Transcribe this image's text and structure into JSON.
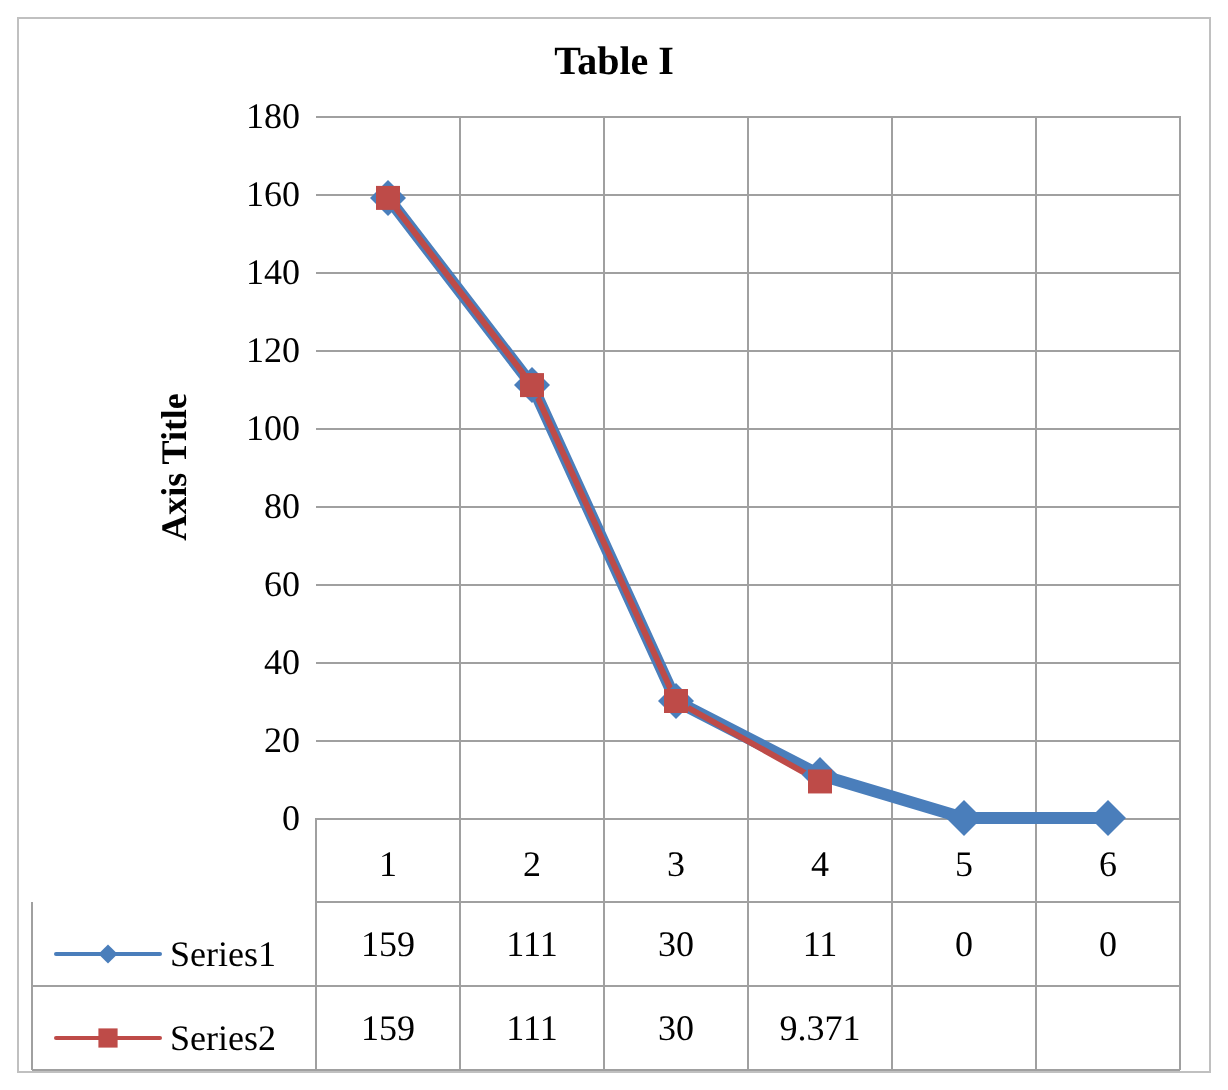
{
  "chart_data": {
    "type": "line",
    "title": "Table I",
    "ylabel": "Axis Title",
    "categories": [
      "1",
      "2",
      "3",
      "4",
      "5",
      "6"
    ],
    "series": [
      {
        "name": "Series1",
        "color": "#4a7ebb",
        "marker": "diamond",
        "values": [
          159,
          111,
          30,
          11,
          0,
          0
        ]
      },
      {
        "name": "Series2",
        "color": "#be4b48",
        "marker": "square",
        "values": [
          159,
          111,
          30,
          9.371,
          null,
          null
        ]
      }
    ],
    "ylim": [
      0,
      180
    ],
    "yticks": [
      0,
      20,
      40,
      60,
      80,
      100,
      120,
      140,
      160,
      180
    ],
    "grid": "y",
    "legend": "bottom left",
    "data_labels": true,
    "line_style": "solid"
  }
}
